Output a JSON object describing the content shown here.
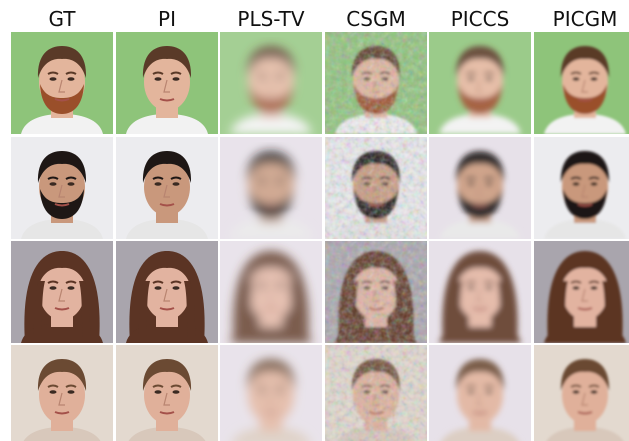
{
  "columns": [
    "GT",
    "PI",
    "PLS-TV",
    "CSGM",
    "PICCS",
    "PICGM"
  ]
}
